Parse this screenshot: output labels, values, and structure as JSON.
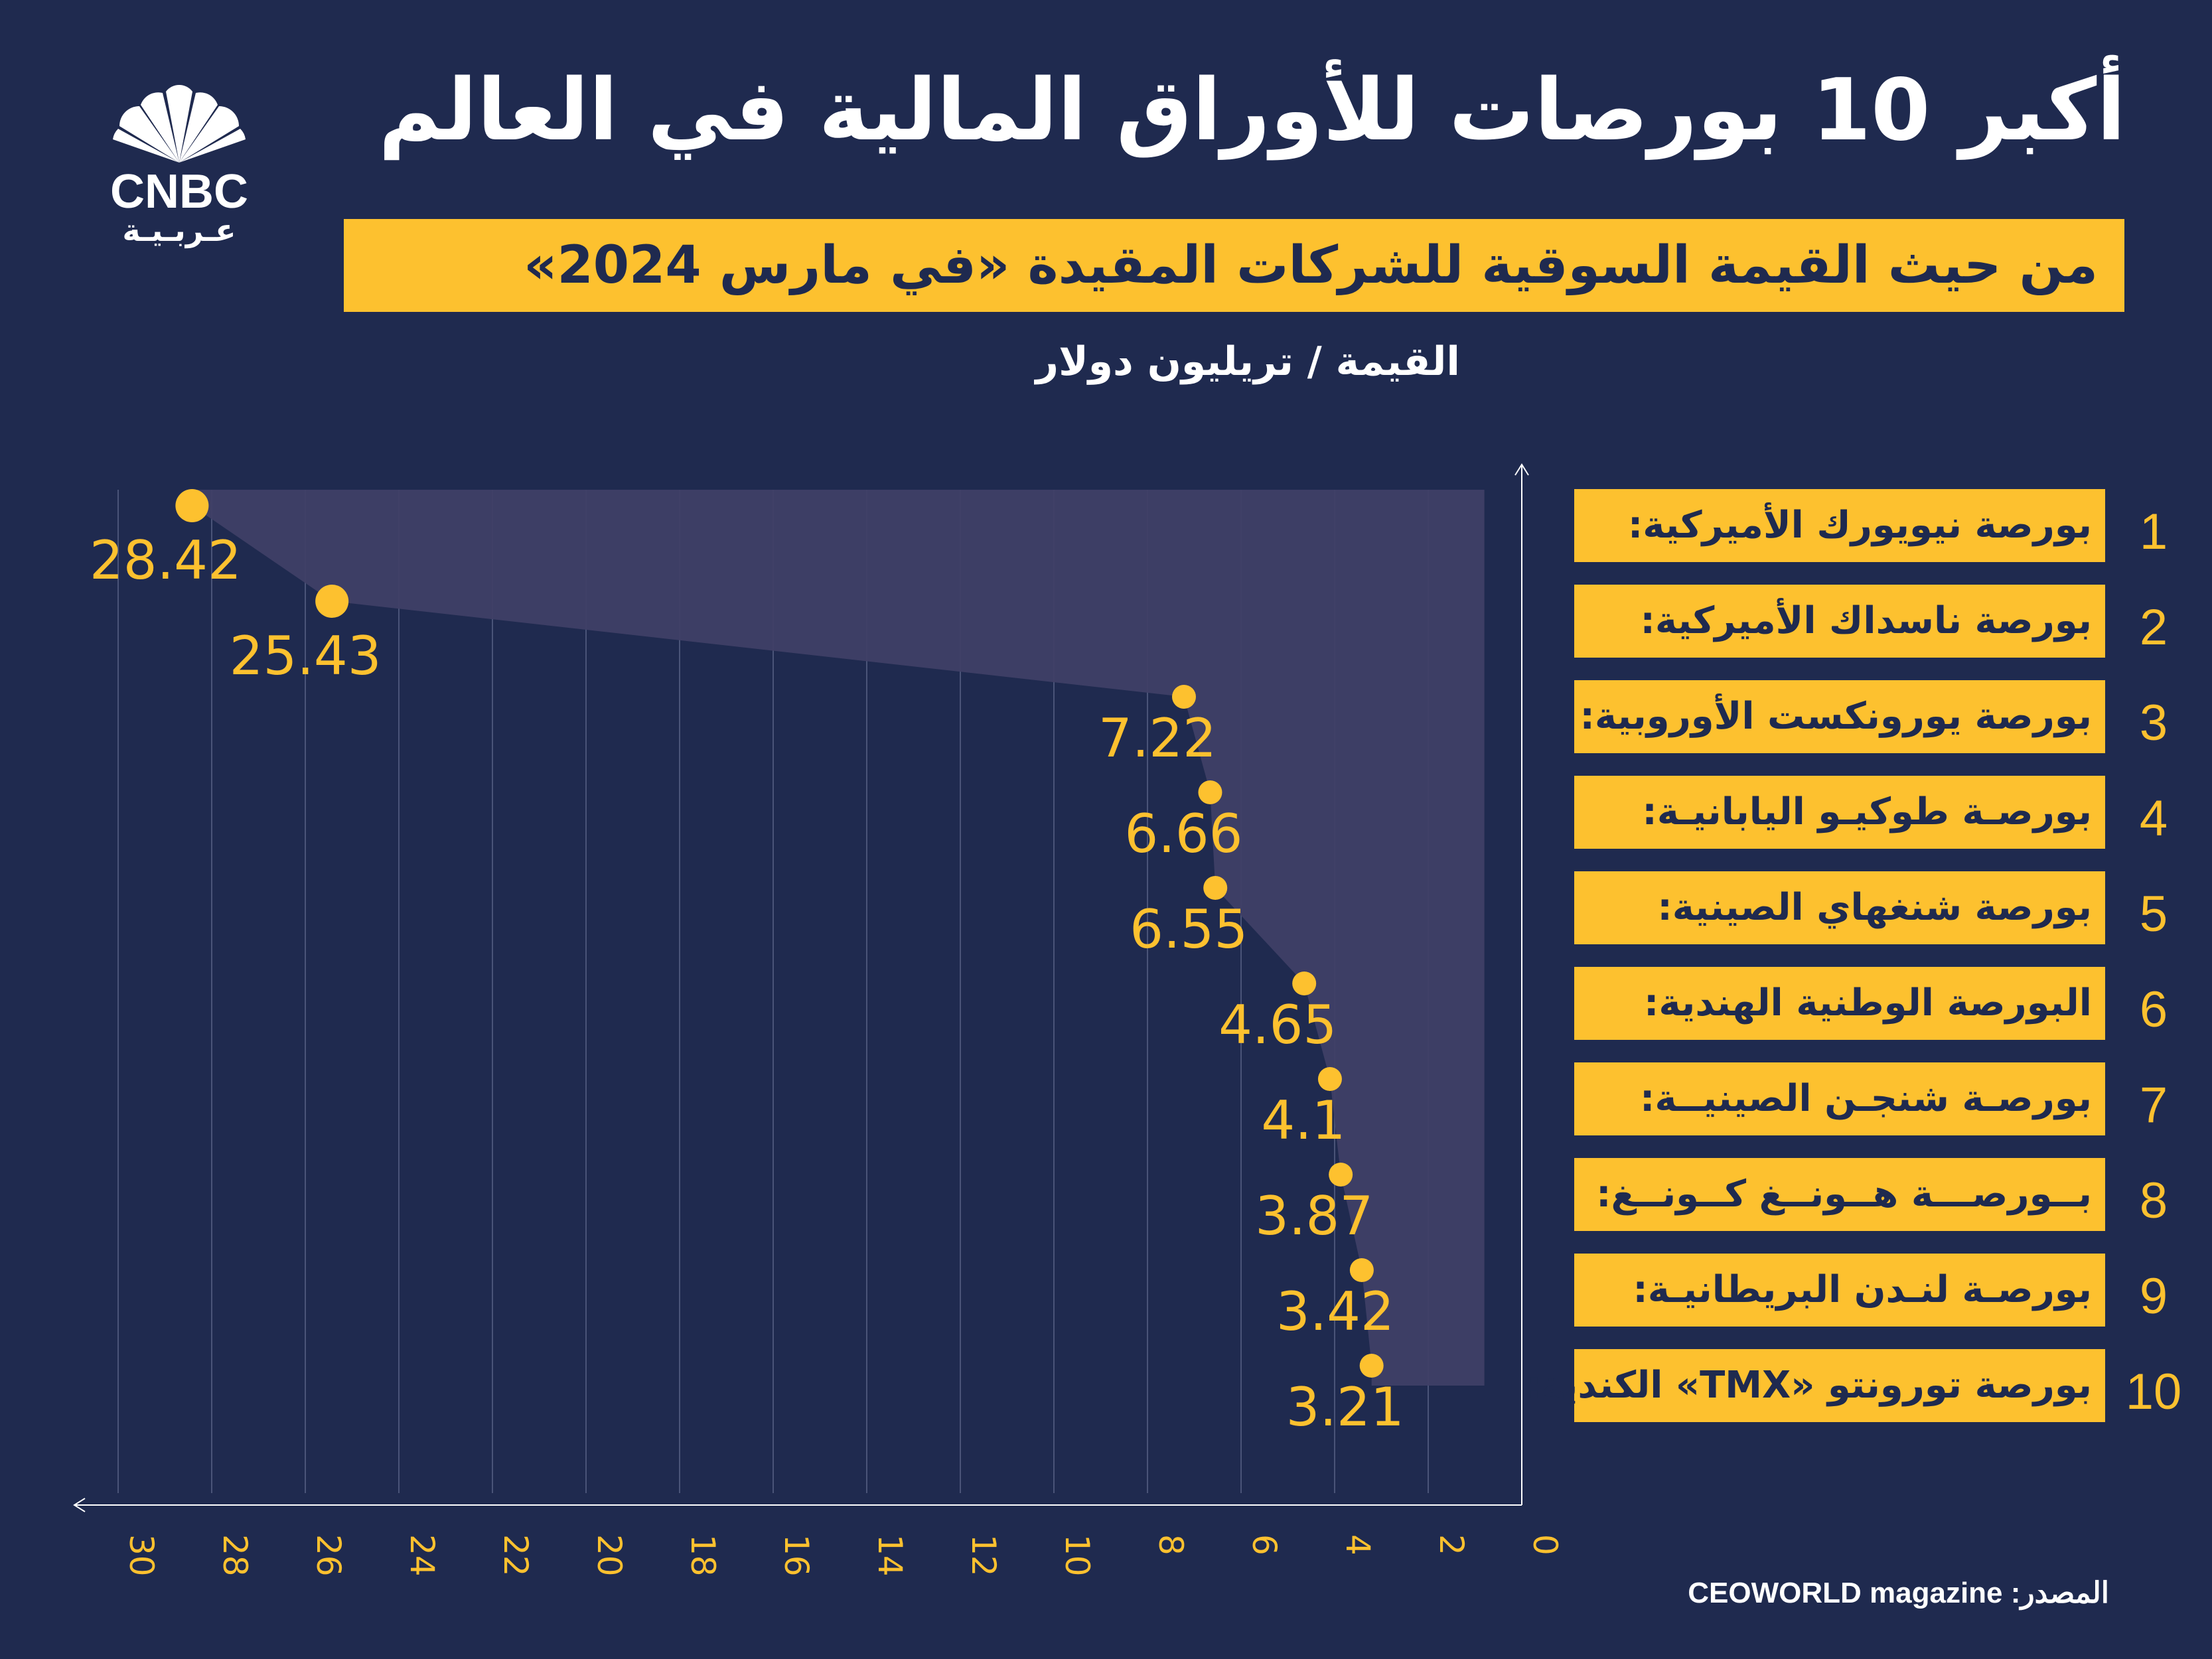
{
  "header": {
    "title": "أكبر 10 بورصات للأوراق المالية في العالم",
    "subtitle": "من حيث القيمة السوقية للشركات المقيدة «في مارس 2024»",
    "unit_label": "القيمة / تريليون دولار"
  },
  "logo": {
    "name": "CNBC",
    "sub": "عـربـيـة",
    "icon": "peacock-icon"
  },
  "source": {
    "label": "المصدر:",
    "value": "CEOWORLD magazine"
  },
  "colors": {
    "background": "#1f2a4f",
    "accent": "#fdc12f",
    "area": "#3f3f66",
    "text": "#ffffff"
  },
  "chart_data": {
    "type": "area",
    "title": "أكبر 10 بورصات للأوراق المالية في العالم",
    "subtitle": "من حيث القيمة السوقية للشركات المقيدة «في مارس 2024»",
    "xlabel": "القيمة / تريليون دولار",
    "xlim": [
      0,
      30
    ],
    "x_reversed": true,
    "ticks": [
      0,
      2,
      4,
      6,
      8,
      10,
      12,
      14,
      16,
      18,
      20,
      22,
      24,
      26,
      28,
      30
    ],
    "tick_labels": [
      "0",
      "2",
      "4",
      "6",
      "8",
      "10",
      "12",
      "14",
      "16",
      "18",
      "20",
      "22",
      "24",
      "26",
      "28",
      "30"
    ],
    "grid": true,
    "categories": [
      {
        "rank": "1",
        "name": "بورصة نيويورك الأميركية:",
        "value": 28.42,
        "label": "28.42"
      },
      {
        "rank": "2",
        "name": "بورصة ناسداك الأميركية:",
        "value": 25.43,
        "label": "25.43"
      },
      {
        "rank": "3",
        "name": "بورصة يورونكست الأوروبية:",
        "value": 7.22,
        "label": "7.22"
      },
      {
        "rank": "4",
        "name": "بورصـة طوكيـو اليابانيـة:",
        "value": 6.66,
        "label": "6.66"
      },
      {
        "rank": "5",
        "name": "بورصة شنغهاي الصينية:",
        "value": 6.55,
        "label": "6.55"
      },
      {
        "rank": "6",
        "name": "البورصة الوطنية الهندية:",
        "value": 4.65,
        "label": "4.65"
      },
      {
        "rank": "7",
        "name": "بورصـة شنجـن الصينيــة:",
        "value": 4.1,
        "label": "4.1"
      },
      {
        "rank": "8",
        "name": "بــورصـــة هــونــغ كــونــغ:",
        "value": 3.87,
        "label": "3.87"
      },
      {
        "rank": "9",
        "name": "بورصـة لنـدن البريطانيـة:",
        "value": 3.42,
        "label": "3.42"
      },
      {
        "rank": "10",
        "name": "بورصة تورونتو «TMX» الكندية:",
        "value": 3.21,
        "label": "3.21"
      }
    ]
  }
}
